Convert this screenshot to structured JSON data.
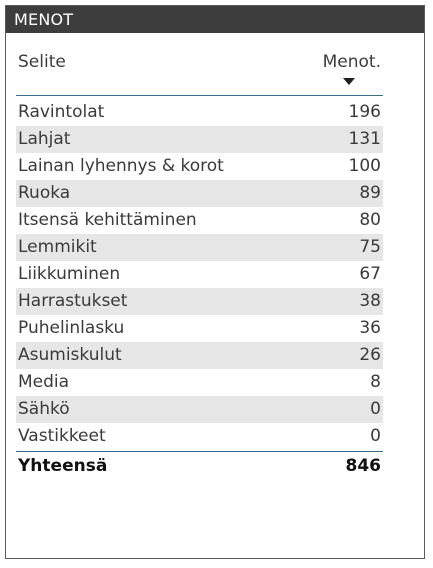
{
  "title": "MENOT",
  "table": {
    "header": {
      "label": "Selite",
      "value": "Menot."
    },
    "rows": [
      {
        "label": "Ravintolat",
        "value": "196"
      },
      {
        "label": "Lahjat",
        "value": "131"
      },
      {
        "label": "Lainan lyhennys & korot",
        "value": "100"
      },
      {
        "label": "Ruoka",
        "value": "89"
      },
      {
        "label": "Itsensä kehittäminen",
        "value": "80"
      },
      {
        "label": "Lemmikit",
        "value": "75"
      },
      {
        "label": "Liikkuminen",
        "value": "67"
      },
      {
        "label": "Harrastukset",
        "value": "38"
      },
      {
        "label": "Puhelinlasku",
        "value": "36"
      },
      {
        "label": "Asumiskulut",
        "value": "26"
      },
      {
        "label": "Media",
        "value": "8"
      },
      {
        "label": "Sähkö",
        "value": "0"
      },
      {
        "label": "Vastikkeet",
        "value": "0"
      }
    ],
    "total": {
      "label": "Yhteensä",
      "value": "846"
    },
    "sort": "descending"
  },
  "colors": {
    "title_bg": "#3d3d3d",
    "title_text": "#ffffff",
    "rule": "#3a6e88",
    "alt_row": "#e6e6e6"
  },
  "icons": {
    "sort": "sort-descending-icon"
  }
}
